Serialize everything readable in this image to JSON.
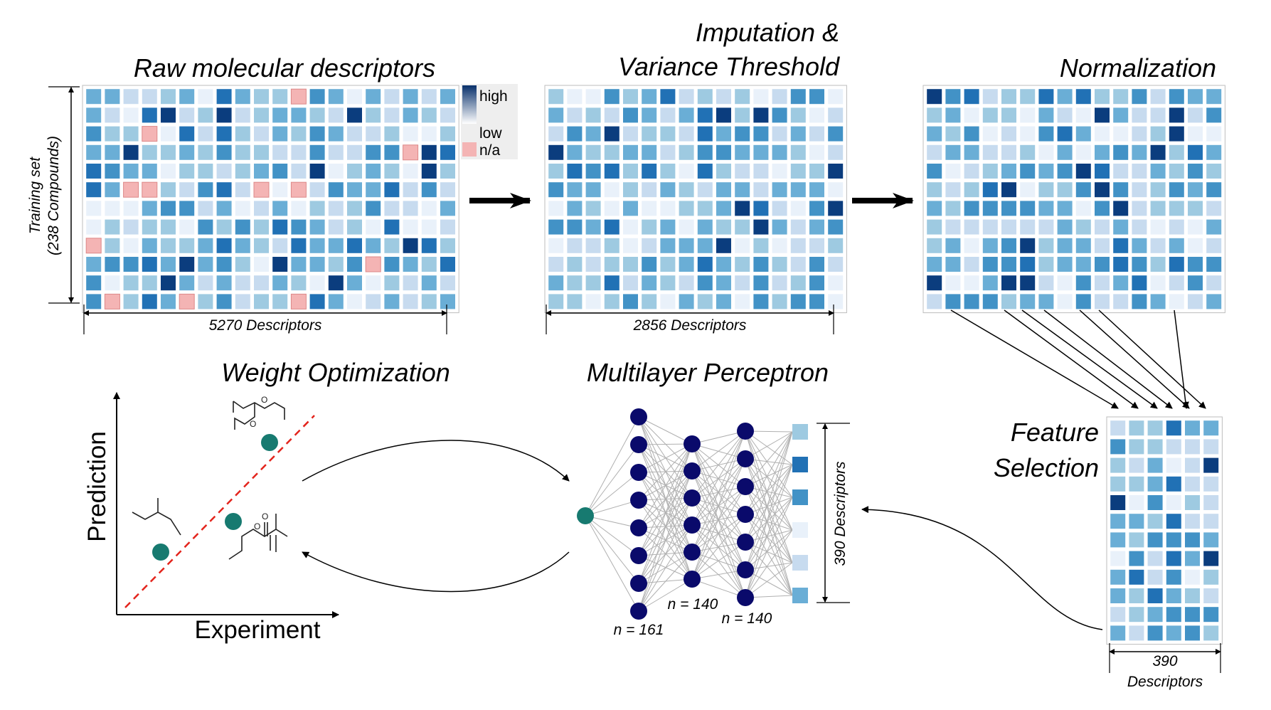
{
  "titles": {
    "raw": "Raw molecular descriptors",
    "imputation_line1": "Imputation &",
    "imputation_line2": "Variance Threshold",
    "normalization": "Normalization",
    "feature_line1": "Feature",
    "feature_line2": "Selection",
    "weight_optimization": "Weight Optimization",
    "mlp": "Multilayer Perceptron"
  },
  "legend": {
    "high": "high",
    "low": "low",
    "na": "n/a"
  },
  "dims": {
    "training_line1": "Training set",
    "training_line2": "(238 Compounds)",
    "raw_descriptors": "5270 Descriptors",
    "imputed_descriptors": "2856 Descriptors",
    "selected_num": "390",
    "selected_word": "Descriptors",
    "mlp_descriptors": "390 Descriptors"
  },
  "mlp": {
    "layer1": "n = 161",
    "layer2": "n = 140",
    "layer3": "n = 140"
  },
  "plot": {
    "xlabel": "Experiment",
    "ylabel": "Prediction"
  },
  "colors": {
    "na": "#f4b4b4",
    "palette": [
      "#e9f1fa",
      "#c7dbef",
      "#9ecae1",
      "#6aaed6",
      "#4292c6",
      "#2171b5",
      "#0b3d7e",
      "#08306b"
    ],
    "node": "#0a0a6b",
    "teal": "#177a70",
    "diagonal": "#e3241c"
  }
}
